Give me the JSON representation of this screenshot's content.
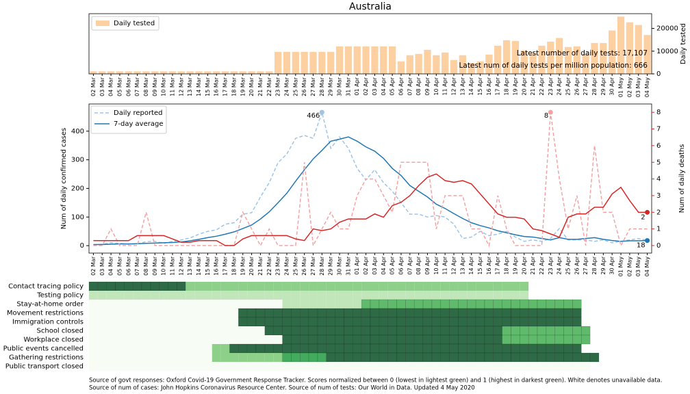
{
  "chart_data": [
    {
      "type": "bar",
      "title": "Australia",
      "y_label": "Daily tested",
      "y_axis_side": "right",
      "legend": "upper left",
      "categories": [
        "02 Mar",
        "03 Mar",
        "04 Mar",
        "05 Mar",
        "06 Mar",
        "07 Mar",
        "08 Mar",
        "09 Mar",
        "10 Mar",
        "11 Mar",
        "12 Mar",
        "13 Mar",
        "14 Mar",
        "15 Mar",
        "16 Mar",
        "17 Mar",
        "18 Mar",
        "19 Mar",
        "20 Mar",
        "21 Mar",
        "22 Mar",
        "23 Mar",
        "24 Mar",
        "25 Mar",
        "26 Mar",
        "27 Mar",
        "28 Mar",
        "29 Mar",
        "30 Mar",
        "31 Mar",
        "01 Apr",
        "02 Apr",
        "03 Apr",
        "04 Apr",
        "05 Apr",
        "06 Apr",
        "07 Apr",
        "08 Apr",
        "09 Apr",
        "10 Apr",
        "11 Apr",
        "12 Apr",
        "13 Apr",
        "14 Apr",
        "15 Apr",
        "16 Apr",
        "17 Apr",
        "18 Apr",
        "19 Apr",
        "20 Apr",
        "21 Apr",
        "22 Apr",
        "23 Apr",
        "24 Apr",
        "25 Apr",
        "26 Apr",
        "27 Apr",
        "28 Apr",
        "29 Apr",
        "30 Apr",
        "01 May",
        "02 May",
        "03 May",
        "04 May"
      ],
      "series": [
        {
          "name": "Daily tested",
          "color": "#fdd0a2",
          "values": [
            1100,
            1100,
            1100,
            1100,
            1100,
            1100,
            1100,
            1100,
            1100,
            1100,
            1100,
            1100,
            1100,
            1100,
            1100,
            1100,
            1100,
            1100,
            1100,
            1100,
            1100,
            9700,
            9700,
            9700,
            9700,
            9700,
            9700,
            9700,
            12100,
            12100,
            12100,
            12100,
            12100,
            12100,
            12100,
            5500,
            8200,
            8800,
            10600,
            8200,
            9400,
            6100,
            8200,
            4800,
            5500,
            8500,
            12400,
            14800,
            14500,
            10300,
            9100,
            12400,
            14200,
            15800,
            11800,
            12100,
            8800,
            13600,
            13600,
            19100,
            25200,
            22700,
            21500,
            17107
          ]
        }
      ],
      "ylim": [
        0,
        26500
      ],
      "yticks": [
        0,
        10000,
        20000
      ],
      "annotations": [
        "Latest number of daily tests: 17,107",
        "Latest num of daily tests per million population: 666"
      ]
    },
    {
      "type": "line",
      "y_label": "Num of daily confirmed cases",
      "y_color": "#1f77b4",
      "y2_label": "Num of daily deaths",
      "y2_color": "#d62728",
      "legend": "upper left",
      "categories": [
        "02 Mar",
        "03 Mar",
        "04 Mar",
        "05 Mar",
        "06 Mar",
        "07 Mar",
        "08 Mar",
        "09 Mar",
        "10 Mar",
        "11 Mar",
        "12 Mar",
        "13 Mar",
        "14 Mar",
        "15 Mar",
        "16 Mar",
        "17 Mar",
        "18 Mar",
        "19 Mar",
        "20 Mar",
        "21 Mar",
        "22 Mar",
        "23 Mar",
        "24 Mar",
        "25 Mar",
        "26 Mar",
        "27 Mar",
        "28 Mar",
        "29 Mar",
        "30 Mar",
        "31 Mar",
        "01 Apr",
        "02 Apr",
        "03 Apr",
        "04 Apr",
        "05 Apr",
        "06 Apr",
        "07 Apr",
        "08 Apr",
        "09 Apr",
        "10 Apr",
        "11 Apr",
        "12 Apr",
        "13 Apr",
        "14 Apr",
        "15 Apr",
        "16 Apr",
        "17 Apr",
        "18 Apr",
        "19 Apr",
        "20 Apr",
        "21 Apr",
        "22 Apr",
        "23 Apr",
        "24 Apr",
        "25 Apr",
        "26 Apr",
        "27 Apr",
        "28 Apr",
        "29 Apr",
        "30 Apr",
        "01 May",
        "02 May",
        "03 May",
        "04 May"
      ],
      "series": [
        {
          "name": "Daily reported",
          "color": "#9ec4e6",
          "linestyle": "dashed",
          "axis": "y",
          "highlight": "max",
          "values": [
            3,
            5,
            10,
            8,
            5,
            6,
            14,
            15,
            8,
            15,
            20,
            27,
            40,
            50,
            55,
            75,
            80,
            110,
            115,
            170,
            220,
            290,
            320,
            375,
            385,
            375,
            466,
            340,
            380,
            340,
            270,
            230,
            265,
            220,
            190,
            150,
            110,
            110,
            100,
            105,
            100,
            75,
            25,
            30,
            50,
            35,
            40,
            50,
            30,
            15,
            20,
            15,
            25,
            60,
            20,
            20,
            20,
            15,
            20,
            10,
            15,
            20,
            25,
            18
          ]
        },
        {
          "name": "7-day average",
          "color": "#1f77b4",
          "linestyle": "solid",
          "axis": "y",
          "highlight": "last",
          "values": [
            4,
            4,
            5,
            6,
            6,
            7,
            8,
            9,
            10,
            11,
            13,
            17,
            22,
            28,
            33,
            40,
            48,
            60,
            72,
            93,
            118,
            150,
            183,
            225,
            265,
            303,
            333,
            365,
            372,
            380,
            365,
            345,
            330,
            305,
            270,
            245,
            210,
            190,
            170,
            145,
            130,
            112,
            95,
            80,
            70,
            62,
            52,
            45,
            38,
            32,
            30,
            25,
            20,
            28,
            22,
            22,
            25,
            28,
            22,
            18,
            15,
            17,
            17,
            18
          ]
        },
        {
          "color": "#f4a3a3",
          "linestyle": "dashed",
          "axis": "y2",
          "highlight": "max",
          "values": [
            0,
            0,
            1,
            0,
            0,
            0,
            2,
            0,
            0,
            0,
            0,
            0,
            0,
            0,
            0,
            0,
            0,
            2,
            1,
            0,
            1,
            0,
            0,
            0,
            5,
            0,
            1,
            2,
            1,
            1,
            3,
            4,
            4,
            3,
            2,
            5,
            5,
            5,
            5,
            1,
            3,
            3,
            3,
            1,
            1,
            0,
            3,
            1,
            0,
            0,
            0,
            0,
            8,
            4,
            1,
            3,
            0,
            6,
            2,
            2,
            0,
            1,
            1,
            1
          ]
        },
        {
          "color": "#d62728",
          "linestyle": "solid",
          "axis": "y2",
          "highlight": "last",
          "values": [
            0.3,
            0.3,
            0.3,
            0.3,
            0.3,
            0.6,
            0.6,
            0.6,
            0.6,
            0.4,
            0.2,
            0.2,
            0.3,
            0.3,
            0.3,
            0,
            0,
            0.4,
            0.6,
            0.6,
            0.6,
            0.6,
            0.6,
            0.4,
            0.3,
            1.0,
            0.9,
            1.0,
            1.4,
            1.6,
            1.6,
            1.6,
            1.9,
            1.7,
            2.4,
            2.6,
            3.0,
            3.6,
            4.1,
            4.3,
            3.9,
            3.8,
            3.9,
            3.7,
            3.1,
            2.5,
            1.9,
            1.7,
            1.7,
            1.6,
            1.0,
            0.9,
            0.7,
            0.5,
            1.7,
            1.9,
            1.9,
            2.3,
            2.3,
            3.1,
            3.5,
            2.7,
            2,
            2
          ]
        }
      ],
      "ylim": [
        -26,
        495
      ],
      "yticks": [
        0,
        100,
        200,
        300,
        400
      ],
      "y2lim": [
        -0.45,
        8.5
      ],
      "y2ticks": [
        0,
        1,
        2,
        3,
        4,
        5,
        6,
        7,
        8
      ]
    },
    {
      "type": "heatmap",
      "vlim": [
        0,
        1
      ],
      "rows": [
        "Contact tracing policy",
        "Testing policy",
        "Stay-at-home order",
        "Movement restrictions",
        "Immigration controls",
        "School closed",
        "Workplace closed",
        "Public events cancelled",
        "Gathering restrictions",
        "Public transport closed"
      ],
      "values": [
        [
          1,
          1,
          1,
          1,
          1,
          1,
          1,
          1,
          1,
          1,
          1,
          0.5,
          0.5,
          0.5,
          0.5,
          0.5,
          0.5,
          0.5,
          0.5,
          0.5,
          0.5,
          0.5,
          0.5,
          0.5,
          0.5,
          0.5,
          0.5,
          0.5,
          0.5,
          0.5,
          0.5,
          0.5,
          0.5,
          0.5,
          0.5,
          0.5,
          0.5,
          0.5,
          0.5,
          0.5,
          0.5,
          0.5,
          0.5,
          0.5,
          0.5,
          0.5,
          0.5,
          0.5,
          0.5,
          0.5,
          null,
          null,
          null,
          null,
          null,
          null,
          null,
          null,
          null,
          null,
          null,
          null,
          null,
          null
        ],
        [
          0.33,
          0.33,
          0.33,
          0.33,
          0.33,
          0.33,
          0.33,
          0.33,
          0.33,
          0.33,
          0.33,
          0.33,
          0.33,
          0.33,
          0.33,
          0.33,
          0.33,
          0.33,
          0.33,
          0.33,
          0.33,
          0.33,
          0.33,
          0.33,
          0.33,
          0.33,
          0.33,
          0.33,
          0.33,
          0.33,
          0.33,
          0.33,
          0.33,
          0.33,
          0.33,
          0.33,
          0.33,
          0.33,
          0.33,
          0.33,
          0.33,
          0.33,
          0.33,
          0.33,
          0.33,
          0.33,
          0.33,
          0.33,
          0.33,
          0.33,
          null,
          null,
          null,
          null,
          null,
          null,
          null,
          null,
          null,
          null,
          null,
          null,
          null,
          null
        ],
        [
          0,
          0,
          0,
          0,
          0,
          0,
          0,
          0,
          0,
          0,
          0,
          0,
          0,
          0,
          0,
          0,
          0,
          0,
          0,
          0,
          0,
          0,
          0.33,
          0.33,
          0.33,
          0.33,
          0.33,
          0.33,
          0.33,
          0.33,
          0.33,
          0.67,
          0.67,
          0.67,
          0.67,
          0.67,
          0.67,
          0.67,
          0.67,
          0.67,
          0.67,
          0.67,
          0.67,
          0.67,
          0.67,
          0.67,
          0.67,
          0.67,
          0.67,
          0.67,
          0.67,
          0.67,
          0.67,
          0.67,
          0.67,
          0.67,
          null,
          null,
          null,
          null,
          null,
          null,
          null,
          null
        ],
        [
          0,
          0,
          0,
          0,
          0,
          0,
          0,
          0,
          0,
          0,
          0,
          0,
          0,
          0,
          0,
          0,
          0,
          1,
          1,
          1,
          1,
          1,
          1,
          1,
          1,
          1,
          1,
          1,
          1,
          1,
          1,
          1,
          1,
          1,
          1,
          1,
          1,
          1,
          1,
          1,
          1,
          1,
          1,
          1,
          1,
          1,
          1,
          1,
          1,
          1,
          1,
          1,
          1,
          1,
          1,
          1,
          null,
          null,
          null,
          null,
          null,
          null,
          null,
          null
        ],
        [
          0,
          0,
          0,
          0,
          0,
          0,
          0,
          0,
          0,
          0,
          0,
          0,
          0,
          0,
          0,
          0,
          0,
          1,
          1,
          1,
          1,
          1,
          1,
          1,
          1,
          1,
          1,
          1,
          1,
          1,
          1,
          1,
          1,
          1,
          1,
          1,
          1,
          1,
          1,
          1,
          1,
          1,
          1,
          1,
          1,
          1,
          1,
          1,
          1,
          1,
          1,
          1,
          1,
          1,
          1,
          1,
          null,
          null,
          null,
          null,
          null,
          null,
          null,
          null
        ],
        [
          0,
          0,
          0,
          0,
          0,
          0,
          0,
          0,
          0,
          0,
          0,
          0,
          0,
          0,
          0,
          0,
          0,
          0,
          0,
          0,
          1,
          1,
          1,
          1,
          1,
          1,
          1,
          1,
          1,
          1,
          1,
          1,
          1,
          1,
          1,
          1,
          1,
          1,
          1,
          1,
          1,
          1,
          1,
          1,
          1,
          1,
          1,
          0.67,
          0.67,
          0.67,
          0.67,
          0.67,
          0.67,
          0.67,
          0.67,
          0.67,
          0.67,
          null,
          null,
          null,
          null,
          null,
          null,
          null
        ],
        [
          0,
          0,
          0,
          0,
          0,
          0,
          0,
          0,
          0,
          0,
          0,
          0,
          0,
          0,
          0,
          0,
          0,
          0,
          0,
          0,
          0,
          0,
          1,
          1,
          1,
          1,
          1,
          1,
          1,
          1,
          1,
          1,
          1,
          1,
          1,
          1,
          1,
          1,
          1,
          1,
          1,
          1,
          1,
          1,
          1,
          1,
          1,
          0.67,
          0.67,
          0.67,
          0.67,
          0.67,
          0.67,
          0.67,
          0.67,
          0.67,
          0.67,
          null,
          null,
          null,
          null,
          null,
          null,
          null
        ],
        [
          0,
          0,
          0,
          0,
          0,
          0,
          0,
          0,
          0,
          0,
          0,
          0,
          0,
          0,
          0.5,
          0.5,
          1,
          1,
          1,
          1,
          1,
          1,
          1,
          1,
          1,
          1,
          1,
          1,
          1,
          1,
          1,
          1,
          1,
          1,
          1,
          1,
          1,
          1,
          1,
          1,
          1,
          1,
          1,
          1,
          1,
          1,
          1,
          1,
          1,
          1,
          1,
          1,
          1,
          1,
          1,
          1,
          null,
          null,
          null,
          null,
          null,
          null,
          null,
          null
        ],
        [
          0,
          0,
          0,
          0,
          0,
          0,
          0,
          0,
          0,
          0,
          0,
          0,
          0,
          0,
          0.5,
          0.5,
          0.5,
          0.5,
          0.5,
          0.5,
          0.5,
          0.5,
          0.75,
          0.75,
          0.75,
          0.75,
          0.75,
          1,
          1,
          1,
          1,
          1,
          1,
          1,
          1,
          1,
          1,
          1,
          1,
          1,
          1,
          1,
          1,
          1,
          1,
          1,
          1,
          1,
          1,
          1,
          1,
          1,
          1,
          1,
          1,
          1,
          1,
          1,
          null,
          null,
          null,
          null,
          null,
          null
        ],
        [
          0,
          0,
          0,
          0,
          0,
          0,
          0,
          0,
          0,
          0,
          0,
          0,
          0,
          0,
          0,
          0,
          0,
          0,
          0,
          0,
          0,
          0,
          0,
          0,
          0,
          0,
          0,
          0,
          0,
          0,
          0,
          0,
          0,
          0,
          0,
          0,
          0,
          0,
          0,
          0,
          0,
          0,
          0,
          0,
          0,
          0,
          0,
          0,
          0,
          0,
          0,
          0,
          0,
          0,
          0,
          0,
          0,
          null,
          null,
          null,
          null,
          null,
          null,
          null
        ]
      ]
    }
  ],
  "footnotes": [
    "Source of govt responses: Oxford Covid-19 Government Response Tracker. Scores normalized between 0 (lowest in lightest green) and 1 (highest in darkest green). White denotes unavailable data.",
    "Source of num of cases: John Hopkins Coronavirus Resource Center. Source of num of tests: Our World in Data. Updated 4 May 2020"
  ]
}
